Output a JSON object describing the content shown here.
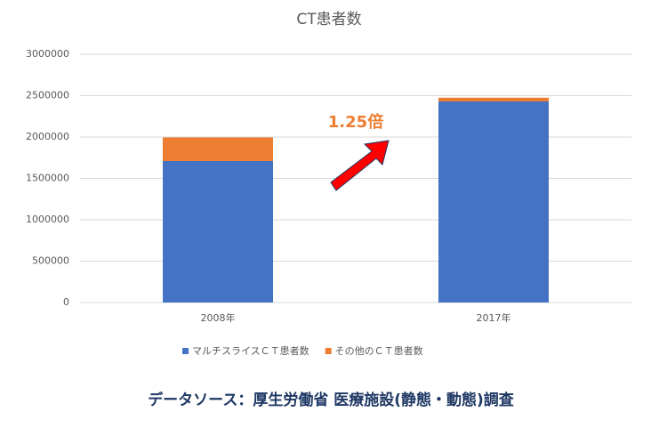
{
  "chart_data": {
    "type": "stacked_bar",
    "title": "CT患者数",
    "categories": [
      "2008年",
      "2017年"
    ],
    "series": [
      {
        "name": "マルチスライスＣＴ患者数",
        "color": "#4472c4",
        "values": [
          1710000,
          2430000
        ]
      },
      {
        "name": "その他のＣＴ患者数",
        "color": "#ed7d31",
        "values": [
          285000,
          45000
        ]
      }
    ],
    "ylim": [
      0,
      3000000
    ],
    "yticks": [
      0,
      500000,
      1000000,
      1500000,
      2000000,
      2500000,
      3000000
    ],
    "grid": true,
    "legend": "bottom",
    "annotation": "1.25倍",
    "source": "データソース：厚生労働省 医療施設(静態・動態)調査"
  }
}
